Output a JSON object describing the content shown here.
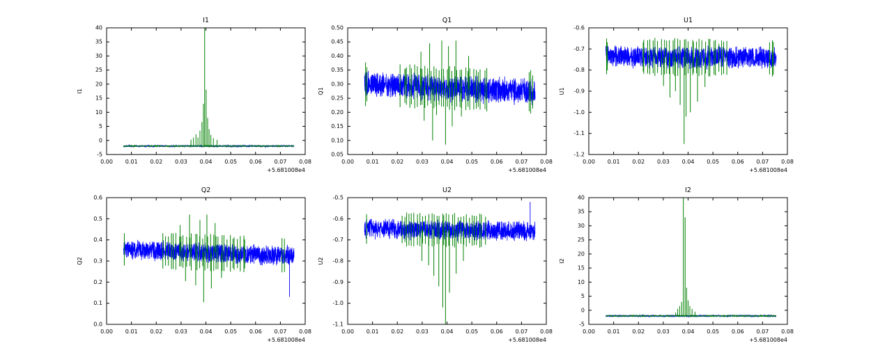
{
  "colors": {
    "blue": "#0000ff",
    "green": "#008000",
    "axis": "#000000",
    "background": "#ffffff"
  },
  "chart_data": [
    {
      "type": "line",
      "title": "I1",
      "ylabel": "I1",
      "xlim": [
        0,
        0.08
      ],
      "ylim": [
        -5,
        40
      ],
      "x_offset_label": "+5.681008e4",
      "xticks": {
        "values": [
          0,
          0.01,
          0.02,
          0.03,
          0.04,
          0.05,
          0.06,
          0.07,
          0.08
        ],
        "labels": [
          "0.00",
          "0.01",
          "0.02",
          "0.03",
          "0.04",
          "0.05",
          "0.06",
          "0.07",
          "0.08"
        ]
      },
      "yticks": {
        "values": [
          -5,
          0,
          5,
          10,
          15,
          20,
          25,
          30,
          35,
          40
        ],
        "labels": [
          "-5",
          "0",
          "5",
          "10",
          "15",
          "20",
          "25",
          "30",
          "35",
          "40"
        ]
      },
      "series": {
        "blue": {
          "center": -2,
          "amplitude": 0.35,
          "x_start": 0.0068,
          "x_end": 0.0755,
          "points": 1400
        },
        "green": {
          "baseline": -2,
          "baseline_noise": 0.2,
          "spikes": [
            {
              "x": 0.034,
              "y": 0.3
            },
            {
              "x": 0.035,
              "y": 1.0
            },
            {
              "x": 0.036,
              "y": 2.2
            },
            {
              "x": 0.0368,
              "y": 1.0
            },
            {
              "x": 0.0376,
              "y": 3.5
            },
            {
              "x": 0.0384,
              "y": 6.5
            },
            {
              "x": 0.039,
              "y": 13
            },
            {
              "x": 0.0395,
              "y": 40
            },
            {
              "x": 0.0401,
              "y": 18
            },
            {
              "x": 0.0407,
              "y": 8
            },
            {
              "x": 0.0413,
              "y": 4
            },
            {
              "x": 0.042,
              "y": 2
            },
            {
              "x": 0.043,
              "y": 0.8
            },
            {
              "x": 0.0445,
              "y": 0.2
            }
          ]
        }
      }
    },
    {
      "type": "line",
      "title": "Q1",
      "ylabel": "Q1",
      "xlim": [
        0,
        0.08
      ],
      "ylim": [
        0.05,
        0.5
      ],
      "x_offset_label": "+5.681008e4",
      "xticks": {
        "values": [
          0,
          0.01,
          0.02,
          0.03,
          0.04,
          0.05,
          0.06,
          0.07,
          0.08
        ],
        "labels": [
          "0.00",
          "0.01",
          "0.02",
          "0.03",
          "0.04",
          "0.05",
          "0.06",
          "0.07",
          "0.08"
        ]
      },
      "yticks": {
        "values": [
          0.05,
          0.1,
          0.15,
          0.2,
          0.25,
          0.3,
          0.35,
          0.4,
          0.45,
          0.5
        ],
        "labels": [
          "0.05",
          "0.10",
          "0.15",
          "0.20",
          "0.25",
          "0.30",
          "0.35",
          "0.40",
          "0.45",
          "0.50"
        ]
      },
      "series": {
        "blue": {
          "center": [
            0.3,
            0.272
          ],
          "amplitude": 0.052,
          "x_start": 0.0068,
          "x_end": 0.0755,
          "points": 1400
        },
        "green": {
          "band_center": [
            0.3,
            0.272
          ],
          "band_half": 0.072,
          "regions": [
            {
              "start": 0.0068,
              "end": 0.008,
              "count": 2
            },
            {
              "start": 0.021,
              "end": 0.0565,
              "count": 33
            },
            {
              "start": 0.0725,
              "end": 0.0748,
              "count": 3
            }
          ],
          "spikes": [
            {
              "x": 0.0232,
              "y": 0.355
            },
            {
              "x": 0.0295,
              "y": 0.415
            },
            {
              "x": 0.0308,
              "y": 0.17
            },
            {
              "x": 0.033,
              "y": 0.445
            },
            {
              "x": 0.0342,
              "y": 0.1
            },
            {
              "x": 0.0358,
              "y": 0.19
            },
            {
              "x": 0.0379,
              "y": 0.455
            },
            {
              "x": 0.0394,
              "y": 0.085
            },
            {
              "x": 0.0406,
              "y": 0.435
            },
            {
              "x": 0.0421,
              "y": 0.15
            },
            {
              "x": 0.0436,
              "y": 0.455
            },
            {
              "x": 0.0458,
              "y": 0.185
            },
            {
              "x": 0.0487,
              "y": 0.4
            }
          ]
        }
      }
    },
    {
      "type": "line",
      "title": "U1",
      "ylabel": "U1",
      "xlim": [
        0,
        0.08
      ],
      "ylim": [
        -1.2,
        -0.6
      ],
      "x_offset_label": "+5.681008e4",
      "xticks": {
        "values": [
          0,
          0.01,
          0.02,
          0.03,
          0.04,
          0.05,
          0.06,
          0.07,
          0.08
        ],
        "labels": [
          "0.00",
          "0.01",
          "0.02",
          "0.03",
          "0.04",
          "0.05",
          "0.06",
          "0.07",
          "0.08"
        ]
      },
      "yticks": {
        "values": [
          -1.2,
          -1.1,
          -1.0,
          -0.9,
          -0.8,
          -0.7,
          -0.6
        ],
        "labels": [
          "-1.2",
          "-1.1",
          "-1.0",
          "-0.9",
          "-0.8",
          "-0.7",
          "-0.6"
        ]
      },
      "series": {
        "blue": {
          "center": [
            -0.735,
            -0.745
          ],
          "amplitude": 0.058,
          "x_start": 0.0068,
          "x_end": 0.0755,
          "points": 1400
        },
        "green": {
          "band_center": [
            -0.735,
            -0.745
          ],
          "band_half": 0.082,
          "regions": [
            {
              "start": 0.0068,
              "end": 0.008,
              "count": 2
            },
            {
              "start": 0.021,
              "end": 0.0565,
              "count": 32
            },
            {
              "start": 0.0725,
              "end": 0.075,
              "count": 3
            }
          ],
          "spikes": [
            {
              "x": 0.0301,
              "y": -0.875
            },
            {
              "x": 0.0327,
              "y": -0.93
            },
            {
              "x": 0.0349,
              "y": -0.9
            },
            {
              "x": 0.0368,
              "y": -0.965
            },
            {
              "x": 0.0384,
              "y": -1.15
            },
            {
              "x": 0.0392,
              "y": -1.02
            },
            {
              "x": 0.0409,
              "y": -1.0
            },
            {
              "x": 0.0438,
              "y": -0.95
            },
            {
              "x": 0.0468,
              "y": -0.88
            }
          ]
        }
      }
    },
    {
      "type": "line",
      "title": "Q2",
      "ylabel": "Q2",
      "xlim": [
        0,
        0.08
      ],
      "ylim": [
        0.0,
        0.6
      ],
      "x_offset_label": "+5.681008e4",
      "xticks": {
        "values": [
          0,
          0.01,
          0.02,
          0.03,
          0.04,
          0.05,
          0.06,
          0.07,
          0.08
        ],
        "labels": [
          "0.00",
          "0.01",
          "0.02",
          "0.03",
          "0.04",
          "0.05",
          "0.06",
          "0.07",
          "0.08"
        ]
      },
      "yticks": {
        "values": [
          0.0,
          0.1,
          0.2,
          0.3,
          0.4,
          0.5,
          0.6
        ],
        "labels": [
          "0.0",
          "0.1",
          "0.2",
          "0.3",
          "0.4",
          "0.5",
          "0.6"
        ]
      },
      "series": {
        "blue": {
          "center": [
            0.355,
            0.325
          ],
          "amplitude": 0.052,
          "x_start": 0.0068,
          "x_end": 0.0755,
          "points": 1400,
          "spikes": [
            {
              "x": 0.0737,
              "y": 0.13
            }
          ]
        },
        "green": {
          "band_center": [
            0.355,
            0.325
          ],
          "band_half": 0.08,
          "regions": [
            {
              "start": 0.0068,
              "end": 0.0078,
              "count": 1
            },
            {
              "start": 0.022,
              "end": 0.0565,
              "count": 32
            },
            {
              "start": 0.0705,
              "end": 0.0725,
              "count": 2
            }
          ],
          "spikes": [
            {
              "x": 0.0296,
              "y": 0.47
            },
            {
              "x": 0.0318,
              "y": 0.205
            },
            {
              "x": 0.0334,
              "y": 0.52
            },
            {
              "x": 0.0359,
              "y": 0.185
            },
            {
              "x": 0.0376,
              "y": 0.495
            },
            {
              "x": 0.0391,
              "y": 0.105
            },
            {
              "x": 0.0404,
              "y": 0.52
            },
            {
              "x": 0.0422,
              "y": 0.17
            },
            {
              "x": 0.0437,
              "y": 0.48
            },
            {
              "x": 0.0463,
              "y": 0.22
            }
          ]
        }
      }
    },
    {
      "type": "line",
      "title": "U2",
      "ylabel": "U2",
      "xlim": [
        0,
        0.08
      ],
      "ylim": [
        -1.1,
        -0.5
      ],
      "x_offset_label": "+5.681008e4",
      "xticks": {
        "values": [
          0,
          0.01,
          0.02,
          0.03,
          0.04,
          0.05,
          0.06,
          0.07,
          0.08
        ],
        "labels": [
          "0.00",
          "0.01",
          "0.02",
          "0.03",
          "0.04",
          "0.05",
          "0.06",
          "0.07",
          "0.08"
        ]
      },
      "yticks": {
        "values": [
          -1.1,
          -1.0,
          -0.9,
          -0.8,
          -0.7,
          -0.6,
          -0.5
        ],
        "labels": [
          "-1.1",
          "-1.0",
          "-0.9",
          "-0.8",
          "-0.7",
          "-0.6",
          "-0.5"
        ]
      },
      "series": {
        "blue": {
          "center": [
            -0.648,
            -0.66
          ],
          "amplitude": 0.052,
          "x_start": 0.0068,
          "x_end": 0.0755,
          "points": 1400,
          "spikes": [
            {
              "x": 0.0735,
              "y": -0.52
            }
          ]
        },
        "green": {
          "band_center": [
            -0.648,
            -0.66
          ],
          "band_half": 0.075,
          "regions": [
            {
              "start": 0.0068,
              "end": 0.0078,
              "count": 1
            },
            {
              "start": 0.021,
              "end": 0.056,
              "count": 32
            }
          ],
          "spikes": [
            {
              "x": 0.0299,
              "y": -0.8
            },
            {
              "x": 0.0326,
              "y": -0.82
            },
            {
              "x": 0.0347,
              "y": -0.87
            },
            {
              "x": 0.0367,
              "y": -0.92
            },
            {
              "x": 0.0383,
              "y": -1.02
            },
            {
              "x": 0.0394,
              "y": -1.1
            },
            {
              "x": 0.041,
              "y": -0.95
            },
            {
              "x": 0.0437,
              "y": -0.86
            },
            {
              "x": 0.0466,
              "y": -0.8
            }
          ]
        }
      }
    },
    {
      "type": "line",
      "title": "I2",
      "ylabel": "I2",
      "xlim": [
        0,
        0.08
      ],
      "ylim": [
        -5,
        40
      ],
      "x_offset_label": "+5.681008e4",
      "xticks": {
        "values": [
          0,
          0.01,
          0.02,
          0.03,
          0.04,
          0.05,
          0.06,
          0.07,
          0.08
        ],
        "labels": [
          "0.00",
          "0.01",
          "0.02",
          "0.03",
          "0.04",
          "0.05",
          "0.06",
          "0.07",
          "0.08"
        ]
      },
      "yticks": {
        "values": [
          -5,
          0,
          5,
          10,
          15,
          20,
          25,
          30,
          35,
          40
        ],
        "labels": [
          "-5",
          "0",
          "5",
          "10",
          "15",
          "20",
          "25",
          "30",
          "35",
          "40"
        ]
      },
      "series": {
        "blue": {
          "center": -2,
          "amplitude": 0.35,
          "x_start": 0.0068,
          "x_end": 0.0755,
          "points": 1400
        },
        "green": {
          "baseline": -2,
          "baseline_noise": 0.2,
          "spikes": [
            {
              "x": 0.035,
              "y": -0.8
            },
            {
              "x": 0.0358,
              "y": 0.5
            },
            {
              "x": 0.0366,
              "y": 1.5
            },
            {
              "x": 0.0374,
              "y": 3.0
            },
            {
              "x": 0.0381,
              "y": 40
            },
            {
              "x": 0.0388,
              "y": 33
            },
            {
              "x": 0.0394,
              "y": 8
            },
            {
              "x": 0.04,
              "y": 3.5
            },
            {
              "x": 0.0407,
              "y": 1.5
            },
            {
              "x": 0.0416,
              "y": 0.5
            },
            {
              "x": 0.0428,
              "y": -0.5
            }
          ]
        }
      }
    }
  ]
}
